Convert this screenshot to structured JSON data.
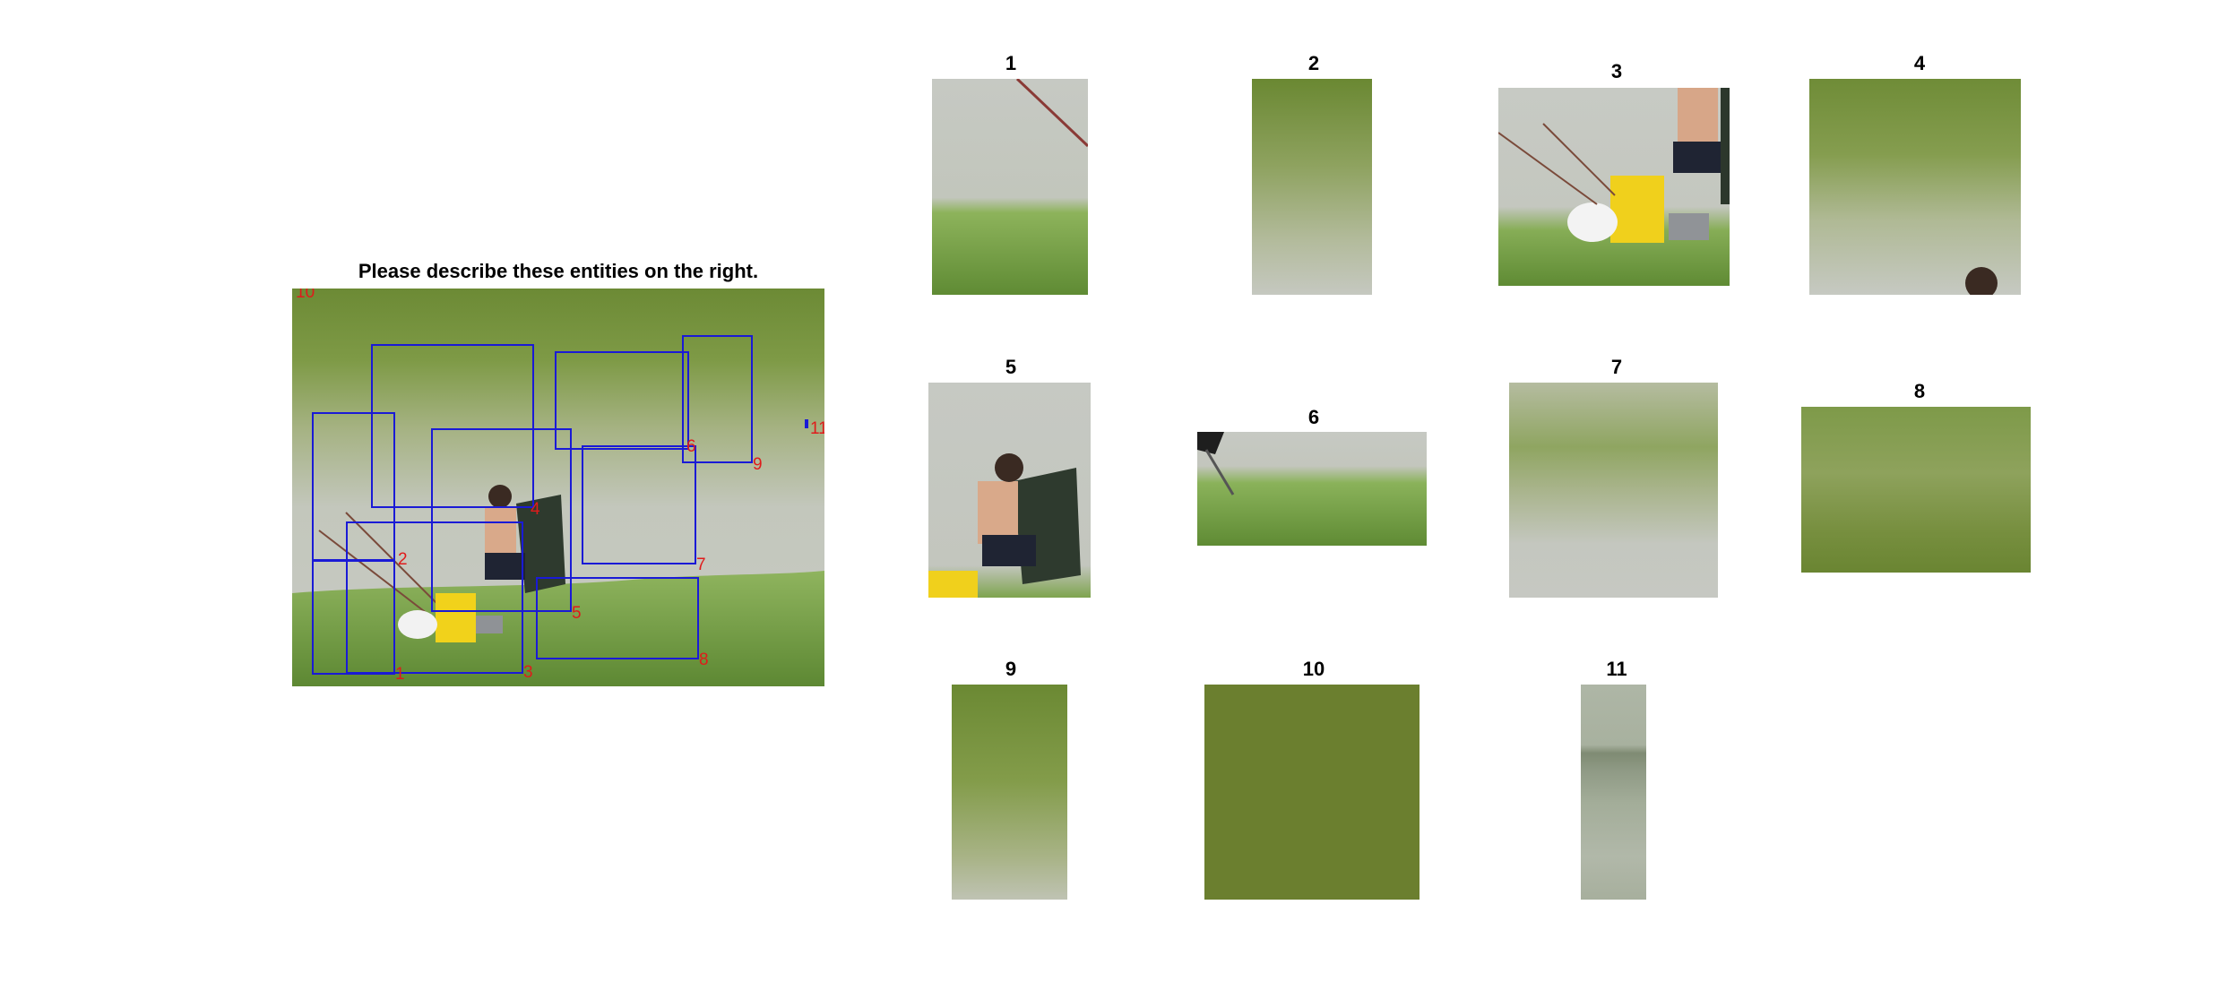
{
  "heading": "Please describe these entities on the right.",
  "scene_boxes": [
    {
      "num": "1"
    },
    {
      "num": "2"
    },
    {
      "num": "3"
    },
    {
      "num": "4"
    },
    {
      "num": "5"
    },
    {
      "num": "6"
    },
    {
      "num": "7"
    },
    {
      "num": "8"
    },
    {
      "num": "9"
    },
    {
      "num": "10"
    },
    {
      "num": "11"
    }
  ],
  "crops": [
    {
      "label": "1"
    },
    {
      "label": "2"
    },
    {
      "label": "3"
    },
    {
      "label": "4"
    },
    {
      "label": "5"
    },
    {
      "label": "6"
    },
    {
      "label": "7"
    },
    {
      "label": "8"
    },
    {
      "label": "9"
    },
    {
      "label": "10"
    },
    {
      "label": "11"
    }
  ],
  "colors": {
    "box": "#1a1ad6",
    "box_label": "#e01b1b",
    "flat_crop": "#6b7f2f"
  }
}
